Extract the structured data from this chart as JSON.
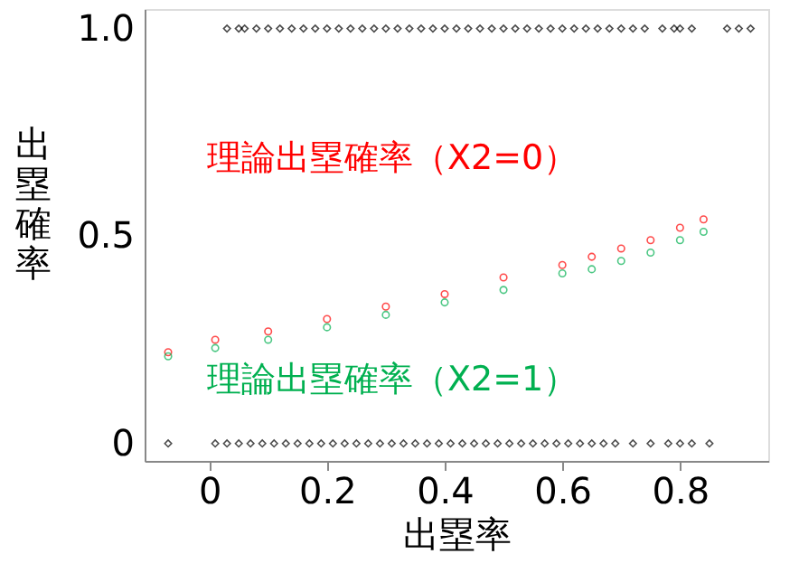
{
  "chart_data": {
    "type": "scatter",
    "xlabel": "出塁率",
    "ylabel": "出塁確率",
    "xlim": [
      -0.11,
      0.95
    ],
    "ylim": [
      -0.042,
      1.047
    ],
    "xticks": [
      0,
      0.2,
      0.4,
      0.6,
      0.8
    ],
    "yticks": [
      0,
      0.5,
      {
        "value": 1,
        "label": "1.0"
      }
    ],
    "grid": false,
    "series": [
      {
        "color": "#000000",
        "marker": "diamond",
        "x": [
          0.03,
          0.05,
          0.06,
          0.08,
          0.1,
          0.12,
          0.14,
          0.16,
          0.18,
          0.2,
          0.22,
          0.24,
          0.26,
          0.28,
          0.3,
          0.32,
          0.34,
          0.36,
          0.38,
          0.4,
          0.42,
          0.44,
          0.46,
          0.48,
          0.5,
          0.52,
          0.54,
          0.56,
          0.58,
          0.6,
          0.62,
          0.64,
          0.66,
          0.68,
          0.7,
          0.72,
          0.74,
          0.77,
          0.79,
          0.8,
          0.82,
          0.88,
          0.9,
          0.92
        ],
        "values": [
          1,
          1,
          1,
          1,
          1,
          1,
          1,
          1,
          1,
          1,
          1,
          1,
          1,
          1,
          1,
          1,
          1,
          1,
          1,
          1,
          1,
          1,
          1,
          1,
          1,
          1,
          1,
          1,
          1,
          1,
          1,
          1,
          1,
          1,
          1,
          1,
          1,
          1,
          1,
          1,
          1,
          1,
          1,
          1
        ]
      },
      {
        "color": "#000000",
        "marker": "diamond",
        "x": [
          -0.07,
          0.01,
          0.03,
          0.05,
          0.07,
          0.09,
          0.11,
          0.13,
          0.15,
          0.17,
          0.19,
          0.21,
          0.23,
          0.25,
          0.27,
          0.29,
          0.31,
          0.33,
          0.35,
          0.37,
          0.39,
          0.41,
          0.43,
          0.45,
          0.47,
          0.49,
          0.51,
          0.53,
          0.55,
          0.57,
          0.59,
          0.61,
          0.63,
          0.65,
          0.67,
          0.69,
          0.72,
          0.75,
          0.78,
          0.8,
          0.82,
          0.85
        ],
        "values": [
          0,
          0,
          0,
          0,
          0,
          0,
          0,
          0,
          0,
          0,
          0,
          0,
          0,
          0,
          0,
          0,
          0,
          0,
          0,
          0,
          0,
          0,
          0,
          0,
          0,
          0,
          0,
          0,
          0,
          0,
          0,
          0,
          0,
          0,
          0,
          0,
          0,
          0,
          0,
          0,
          0,
          0
        ]
      },
      {
        "name": "理論出塁確率（X2=0）",
        "color": "#ff0000",
        "marker": "circle",
        "x": [
          -0.07,
          0.01,
          0.1,
          0.2,
          0.3,
          0.4,
          0.5,
          0.6,
          0.65,
          0.7,
          0.75,
          0.8,
          0.84
        ],
        "values": [
          0.22,
          0.25,
          0.27,
          0.3,
          0.33,
          0.36,
          0.4,
          0.43,
          0.45,
          0.47,
          0.49,
          0.52,
          0.54
        ]
      },
      {
        "name": "理論出塁確率（X2=1）",
        "color": "#00b050",
        "marker": "circle",
        "x": [
          -0.07,
          0.01,
          0.1,
          0.2,
          0.3,
          0.4,
          0.5,
          0.6,
          0.65,
          0.7,
          0.75,
          0.8,
          0.84
        ],
        "values": [
          0.21,
          0.23,
          0.25,
          0.28,
          0.31,
          0.34,
          0.37,
          0.41,
          0.42,
          0.44,
          0.46,
          0.49,
          0.51
        ]
      }
    ]
  }
}
